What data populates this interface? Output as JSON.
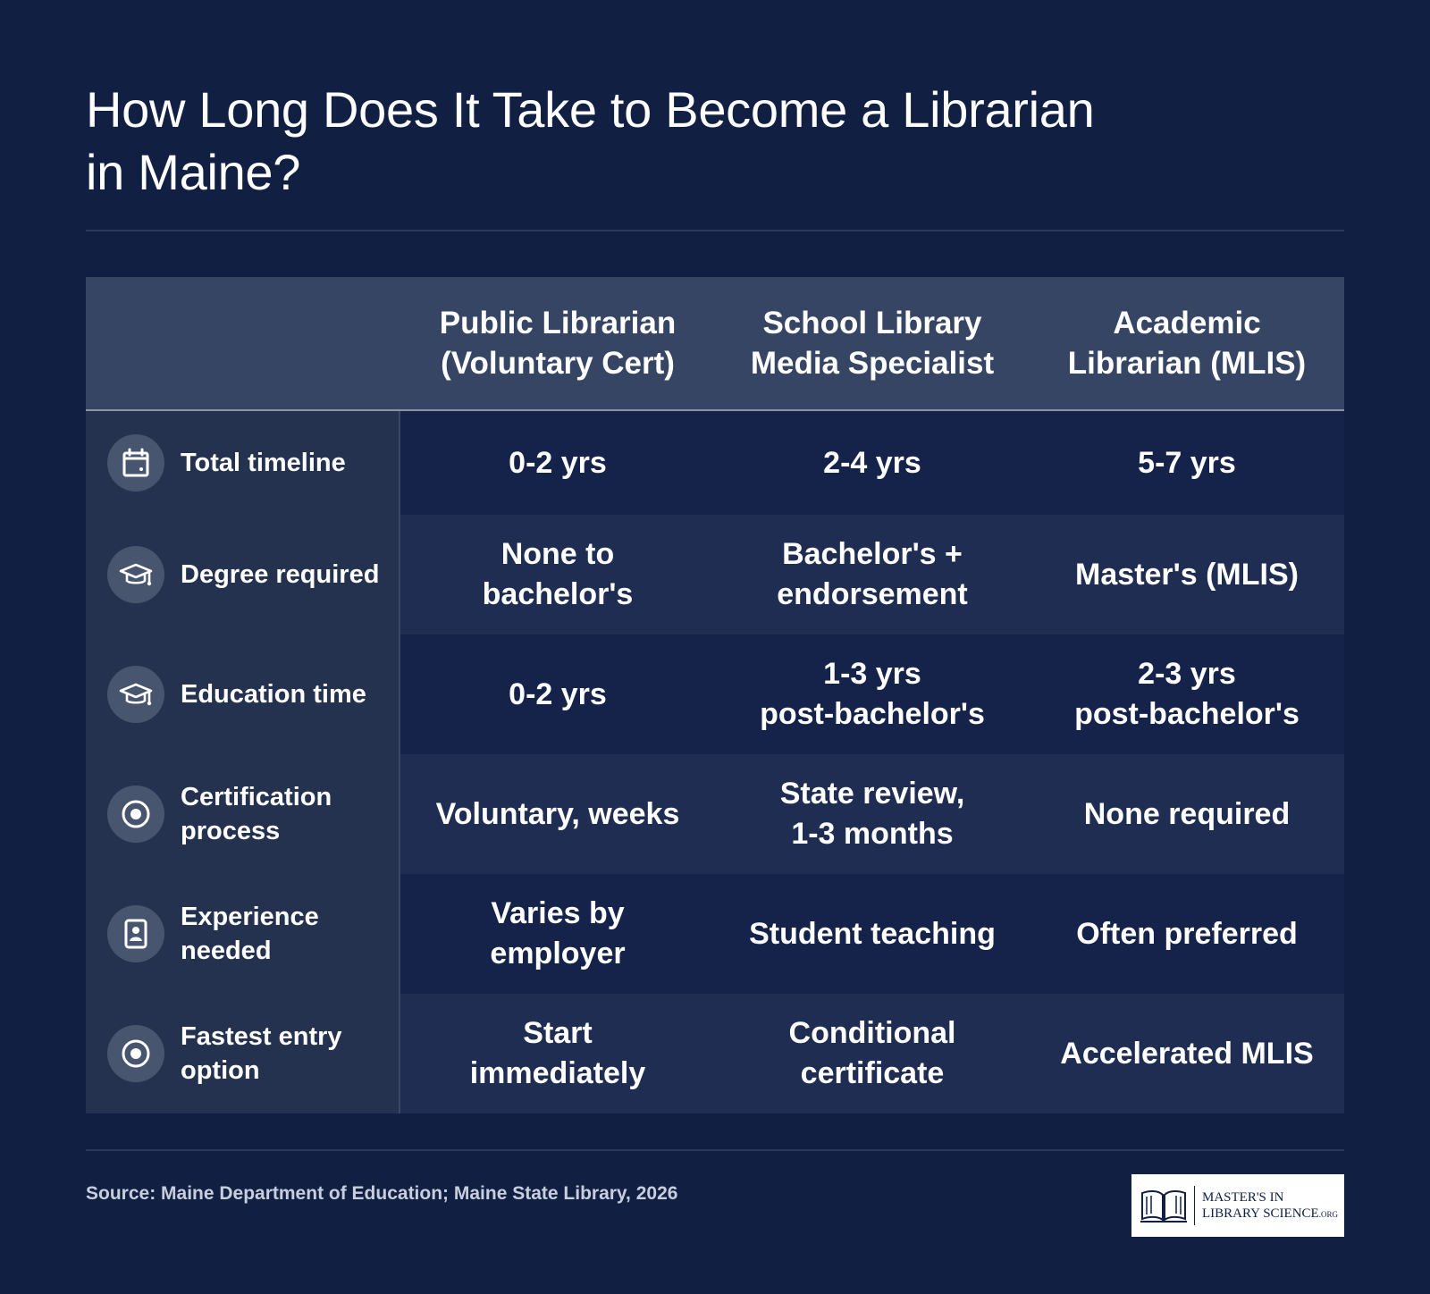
{
  "title": {
    "line1": "How Long Does It Take to Become a Librarian",
    "line2": "in Maine?"
  },
  "columns": [
    {
      "line1": "Public Librarian",
      "line2": "(Voluntary Cert)"
    },
    {
      "line1": "School Library",
      "line2": "Media Specialist"
    },
    {
      "line1": "Academic",
      "line2": "Librarian (MLIS)"
    }
  ],
  "rows": [
    {
      "icon": "calendar-icon",
      "label": "Total timeline",
      "cells": [
        {
          "line1": "0-2 yrs",
          "line2": ""
        },
        {
          "line1": "2-4 yrs",
          "line2": ""
        },
        {
          "line1": "5-7 yrs",
          "line2": ""
        }
      ]
    },
    {
      "icon": "graduation-cap-icon",
      "label": "Degree required",
      "cells": [
        {
          "line1": "None to",
          "line2": "bachelor's"
        },
        {
          "line1": "Bachelor's +",
          "line2": "endorsement"
        },
        {
          "line1": "Master's (MLIS)",
          "line2": ""
        }
      ]
    },
    {
      "icon": "graduation-cap-icon",
      "label": "Education time",
      "cells": [
        {
          "line1": "0-2 yrs",
          "line2": ""
        },
        {
          "line1": "1-3 yrs",
          "line2": "post-bachelor's"
        },
        {
          "line1": "2-3 yrs",
          "line2": "post-bachelor's"
        }
      ]
    },
    {
      "icon": "target-icon",
      "label": "Certification process",
      "cells": [
        {
          "line1": "Voluntary, weeks",
          "line2": ""
        },
        {
          "line1": "State review,",
          "line2": "1-3 months"
        },
        {
          "line1": "None required",
          "line2": ""
        }
      ]
    },
    {
      "icon": "id-badge-icon",
      "label": "Experience needed",
      "cells": [
        {
          "line1": "Varies by",
          "line2": "employer"
        },
        {
          "line1": "Student teaching",
          "line2": ""
        },
        {
          "line1": "Often preferred",
          "line2": ""
        }
      ]
    },
    {
      "icon": "target-icon",
      "label": "Fastest entry option",
      "cells": [
        {
          "line1": "Start",
          "line2": "immediately"
        },
        {
          "line1": "Conditional",
          "line2": "certificate"
        },
        {
          "line1": "Accelerated MLIS",
          "line2": ""
        }
      ]
    }
  ],
  "source": "Source: Maine Department of Education; Maine State Library, 2026",
  "logo": {
    "line1": "MASTER'S IN",
    "line2": "LIBRARY SCIENCE",
    "suffix": ".ORG"
  }
}
